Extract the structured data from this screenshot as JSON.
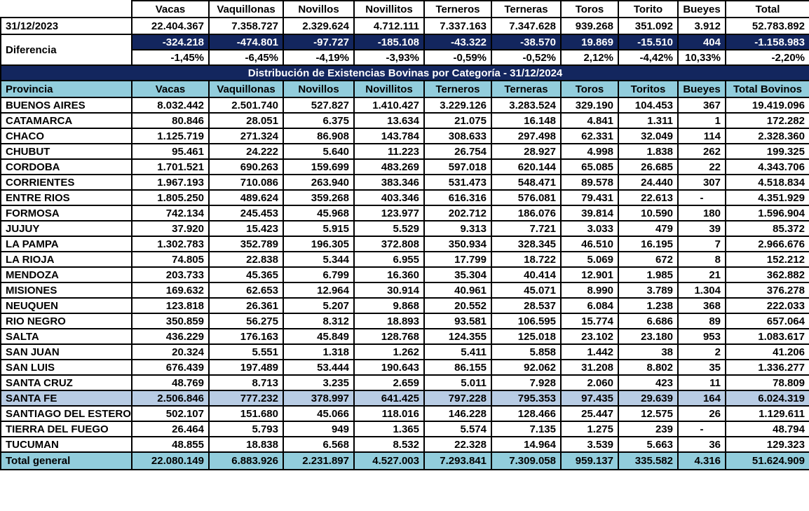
{
  "chart_data": {
    "type": "table",
    "title": "Distribución de Existencias Bovinas por Categoría - 31/12/2024",
    "top_columns": [
      "Vacas",
      "Vaquillonas",
      "Novillos",
      "Novillitos",
      "Terneros",
      "Terneras",
      "Toros",
      "Torito",
      "Bueyes",
      "Total"
    ],
    "prev_year": {
      "label": "31/12/2023",
      "values": [
        "22.404.367",
        "7.358.727",
        "2.329.624",
        "4.712.111",
        "7.337.163",
        "7.347.628",
        "939.268",
        "351.092",
        "3.912",
        "52.783.892"
      ]
    },
    "difference": {
      "label": "Diferencia",
      "values": [
        "-324.218",
        "-474.801",
        "-97.727",
        "-185.108",
        "-43.322",
        "-38.570",
        "19.869",
        "-15.510",
        "404",
        "-1.158.983"
      ],
      "percents": [
        "-1,45%",
        "-6,45%",
        "-4,19%",
        "-3,93%",
        "-0,59%",
        "-0,52%",
        "2,12%",
        "-4,42%",
        "10,33%",
        "-2,20%"
      ]
    },
    "headers": [
      "Provincia",
      "Vacas",
      "Vaquillonas",
      "Novillos",
      "Novillitos",
      "Terneros",
      "Terneras",
      "Toros",
      "Toritos",
      "Bueyes",
      "Total Bovinos"
    ],
    "highlight_row": "SANTA FE",
    "provinces": [
      {
        "name": "BUENOS AIRES",
        "values": [
          "8.032.442",
          "2.501.740",
          "527.827",
          "1.410.427",
          "3.229.126",
          "3.283.524",
          "329.190",
          "104.453",
          "367",
          "19.419.096"
        ]
      },
      {
        "name": "CATAMARCA",
        "values": [
          "80.846",
          "28.051",
          "6.375",
          "13.634",
          "21.075",
          "16.148",
          "4.841",
          "1.311",
          "1",
          "172.282"
        ]
      },
      {
        "name": "CHACO",
        "values": [
          "1.125.719",
          "271.324",
          "86.908",
          "143.784",
          "308.633",
          "297.498",
          "62.331",
          "32.049",
          "114",
          "2.328.360"
        ]
      },
      {
        "name": "CHUBUT",
        "values": [
          "95.461",
          "24.222",
          "5.640",
          "11.223",
          "26.754",
          "28.927",
          "4.998",
          "1.838",
          "262",
          "199.325"
        ]
      },
      {
        "name": "CORDOBA",
        "values": [
          "1.701.521",
          "690.263",
          "159.699",
          "483.269",
          "597.018",
          "620.144",
          "65.085",
          "26.685",
          "22",
          "4.343.706"
        ]
      },
      {
        "name": "CORRIENTES",
        "values": [
          "1.967.193",
          "710.086",
          "263.940",
          "383.346",
          "531.473",
          "548.471",
          "89.578",
          "24.440",
          "307",
          "4.518.834"
        ]
      },
      {
        "name": "ENTRE RIOS",
        "values": [
          "1.805.250",
          "489.624",
          "359.268",
          "403.346",
          "616.316",
          "576.081",
          "79.431",
          "22.613",
          "-",
          "4.351.929"
        ]
      },
      {
        "name": "FORMOSA",
        "values": [
          "742.134",
          "245.453",
          "45.968",
          "123.977",
          "202.712",
          "186.076",
          "39.814",
          "10.590",
          "180",
          "1.596.904"
        ]
      },
      {
        "name": "JUJUY",
        "values": [
          "37.920",
          "15.423",
          "5.915",
          "5.529",
          "9.313",
          "7.721",
          "3.033",
          "479",
          "39",
          "85.372"
        ]
      },
      {
        "name": "LA PAMPA",
        "values": [
          "1.302.783",
          "352.789",
          "196.305",
          "372.808",
          "350.934",
          "328.345",
          "46.510",
          "16.195",
          "7",
          "2.966.676"
        ]
      },
      {
        "name": "LA RIOJA",
        "values": [
          "74.805",
          "22.838",
          "5.344",
          "6.955",
          "17.799",
          "18.722",
          "5.069",
          "672",
          "8",
          "152.212"
        ]
      },
      {
        "name": "MENDOZA",
        "values": [
          "203.733",
          "45.365",
          "6.799",
          "16.360",
          "35.304",
          "40.414",
          "12.901",
          "1.985",
          "21",
          "362.882"
        ]
      },
      {
        "name": "MISIONES",
        "values": [
          "169.632",
          "62.653",
          "12.964",
          "30.914",
          "40.961",
          "45.071",
          "8.990",
          "3.789",
          "1.304",
          "376.278"
        ]
      },
      {
        "name": "NEUQUEN",
        "values": [
          "123.818",
          "26.361",
          "5.207",
          "9.868",
          "20.552",
          "28.537",
          "6.084",
          "1.238",
          "368",
          "222.033"
        ]
      },
      {
        "name": "RIO NEGRO",
        "values": [
          "350.859",
          "56.275",
          "8.312",
          "18.893",
          "93.581",
          "106.595",
          "15.774",
          "6.686",
          "89",
          "657.064"
        ]
      },
      {
        "name": "SALTA",
        "values": [
          "436.229",
          "176.163",
          "45.849",
          "128.768",
          "124.355",
          "125.018",
          "23.102",
          "23.180",
          "953",
          "1.083.617"
        ]
      },
      {
        "name": "SAN JUAN",
        "values": [
          "20.324",
          "5.551",
          "1.318",
          "1.262",
          "5.411",
          "5.858",
          "1.442",
          "38",
          "2",
          "41.206"
        ]
      },
      {
        "name": "SAN LUIS",
        "values": [
          "676.439",
          "197.489",
          "53.444",
          "190.643",
          "86.155",
          "92.062",
          "31.208",
          "8.802",
          "35",
          "1.336.277"
        ]
      },
      {
        "name": "SANTA CRUZ",
        "values": [
          "48.769",
          "8.713",
          "3.235",
          "2.659",
          "5.011",
          "7.928",
          "2.060",
          "423",
          "11",
          "78.809"
        ]
      },
      {
        "name": "SANTA FE",
        "values": [
          "2.506.846",
          "777.232",
          "378.997",
          "641.425",
          "797.228",
          "795.353",
          "97.435",
          "29.639",
          "164",
          "6.024.319"
        ]
      },
      {
        "name": "SANTIAGO DEL ESTERO",
        "values": [
          "502.107",
          "151.680",
          "45.066",
          "118.016",
          "146.228",
          "128.466",
          "25.447",
          "12.575",
          "26",
          "1.129.611"
        ]
      },
      {
        "name": "TIERRA DEL FUEGO",
        "values": [
          "26.464",
          "5.793",
          "949",
          "1.365",
          "5.574",
          "7.135",
          "1.275",
          "239",
          "-",
          "48.794"
        ]
      },
      {
        "name": "TUCUMAN",
        "values": [
          "48.855",
          "18.838",
          "6.568",
          "8.532",
          "22.328",
          "14.964",
          "3.539",
          "5.663",
          "36",
          "129.323"
        ]
      }
    ],
    "total": {
      "label": "Total general",
      "values": [
        "22.080.149",
        "6.883.926",
        "2.231.897",
        "4.527.003",
        "7.293.841",
        "7.309.058",
        "959.137",
        "335.582",
        "4.316",
        "51.624.909"
      ]
    }
  },
  "colors": {
    "navy": "#13265E",
    "header_cyan": "#92CDDC",
    "highlight_periwinkle": "#B8CCE4",
    "total_cyan": "#92CDDC",
    "border": "#000000",
    "text_on_navy": "#FFFFFF"
  }
}
